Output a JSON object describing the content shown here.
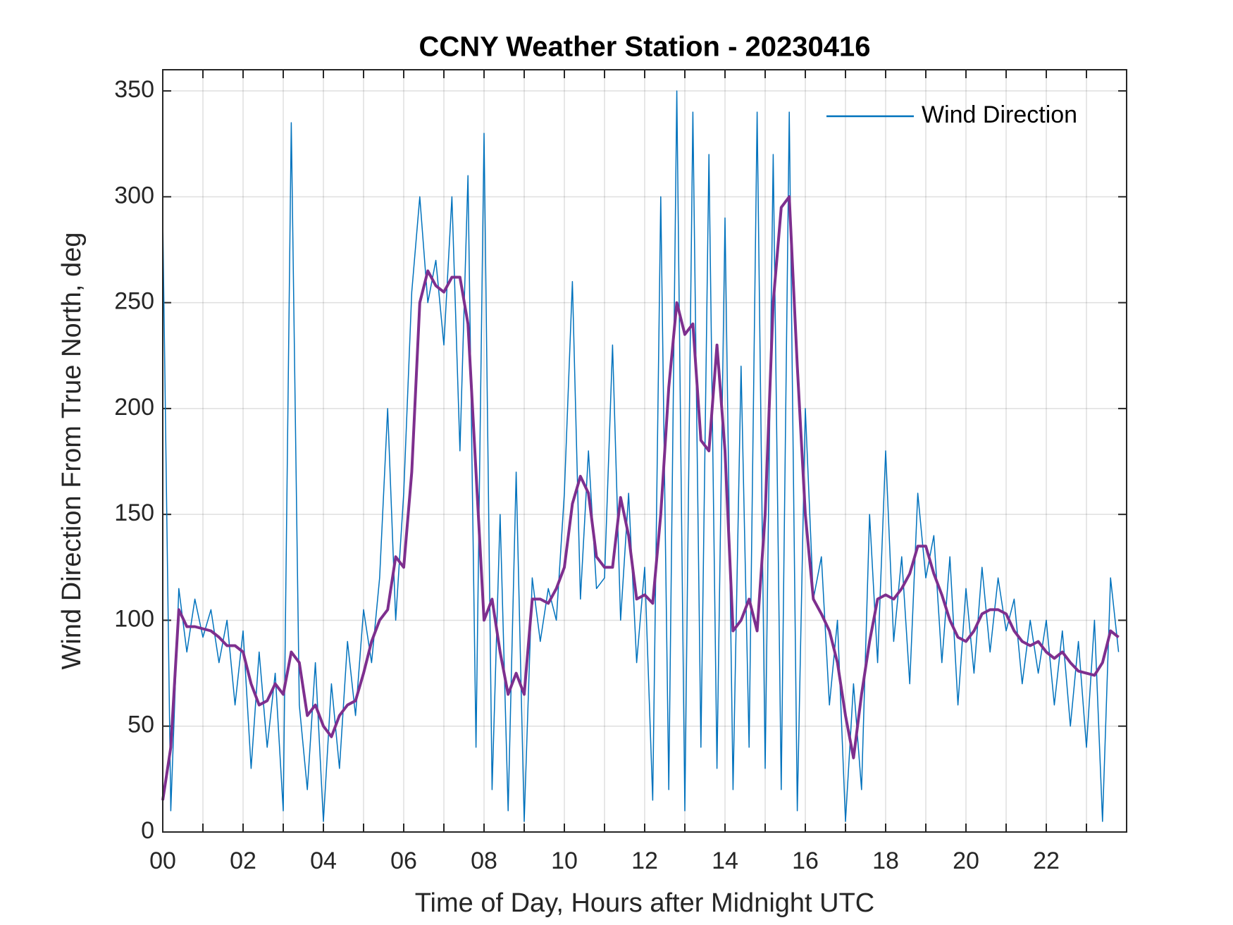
{
  "chart_data": {
    "type": "line",
    "title": "CCNY Weather Station - 20230416",
    "xlabel": "Time of Day, Hours after Midnight UTC",
    "ylabel": "Wind Direction From True North, deg",
    "x": [
      0,
      0.2,
      0.4,
      0.6,
      0.8,
      1,
      1.2,
      1.4,
      1.6,
      1.8,
      2,
      2.2,
      2.4,
      2.6,
      2.8,
      3,
      3.2,
      3.4,
      3.6,
      3.8,
      4,
      4.2,
      4.4,
      4.6,
      4.8,
      5,
      5.2,
      5.4,
      5.6,
      5.8,
      6,
      6.2,
      6.4,
      6.6,
      6.8,
      7,
      7.2,
      7.4,
      7.6,
      7.8,
      8,
      8.2,
      8.4,
      8.6,
      8.8,
      9,
      9.2,
      9.4,
      9.6,
      9.8,
      10,
      10.2,
      10.4,
      10.6,
      10.8,
      11,
      11.2,
      11.4,
      11.6,
      11.8,
      12,
      12.2,
      12.4,
      12.6,
      12.8,
      13,
      13.2,
      13.4,
      13.6,
      13.8,
      14,
      14.2,
      14.4,
      14.6,
      14.8,
      15,
      15.2,
      15.4,
      15.6,
      15.8,
      16,
      16.2,
      16.4,
      16.6,
      16.8,
      17,
      17.2,
      17.4,
      17.6,
      17.8,
      18,
      18.2,
      18.4,
      18.6,
      18.8,
      19,
      19.2,
      19.4,
      19.6,
      19.8,
      20,
      20.2,
      20.4,
      20.6,
      20.8,
      21,
      21.2,
      21.4,
      21.6,
      21.8,
      22,
      22.2,
      22.4,
      22.6,
      22.8,
      23,
      23.2,
      23.4,
      23.6,
      23.8
    ],
    "series": [
      {
        "name": "Wind Direction",
        "color": "#0072bd",
        "width": 1.5,
        "values": [
          290,
          10,
          115,
          85,
          110,
          92,
          105,
          80,
          100,
          60,
          95,
          30,
          85,
          40,
          75,
          10,
          335,
          60,
          20,
          80,
          5,
          70,
          30,
          90,
          55,
          105,
          80,
          120,
          200,
          100,
          160,
          255,
          300,
          250,
          270,
          230,
          300,
          180,
          310,
          40,
          330,
          20,
          150,
          10,
          170,
          5,
          120,
          90,
          115,
          100,
          160,
          260,
          110,
          180,
          115,
          120,
          230,
          100,
          160,
          80,
          125,
          15,
          300,
          20,
          350,
          10,
          340,
          40,
          320,
          30,
          290,
          20,
          220,
          40,
          340,
          30,
          320,
          20,
          340,
          10,
          200,
          110,
          130,
          60,
          100,
          5,
          70,
          20,
          150,
          80,
          180,
          90,
          130,
          70,
          160,
          120,
          140,
          80,
          130,
          60,
          115,
          75,
          125,
          85,
          120,
          95,
          110,
          70,
          100,
          75,
          100,
          60,
          95,
          50,
          90,
          40,
          100,
          5,
          120,
          85
        ]
      },
      {
        "color": "#7e2f8e",
        "width": 4,
        "values": [
          15,
          40,
          105,
          97,
          97,
          96,
          95,
          92,
          88,
          88,
          85,
          70,
          60,
          62,
          70,
          65,
          85,
          80,
          55,
          60,
          50,
          45,
          55,
          60,
          62,
          75,
          90,
          100,
          105,
          130,
          125,
          170,
          250,
          265,
          258,
          255,
          262,
          262,
          240,
          170,
          100,
          110,
          85,
          65,
          75,
          65,
          110,
          110,
          108,
          115,
          125,
          155,
          168,
          160,
          130,
          125,
          125,
          158,
          140,
          110,
          112,
          108,
          150,
          210,
          250,
          235,
          240,
          185,
          180,
          230,
          180,
          95,
          100,
          110,
          95,
          150,
          250,
          295,
          300,
          220,
          150,
          110,
          103,
          95,
          80,
          55,
          35,
          65,
          90,
          110,
          112,
          110,
          115,
          122,
          135,
          135,
          122,
          112,
          100,
          92,
          90,
          95,
          103,
          105,
          105,
          103,
          95,
          90,
          88,
          90,
          85,
          82,
          85,
          80,
          76,
          75,
          74,
          80,
          95,
          92
        ]
      }
    ],
    "xlim": [
      0,
      24
    ],
    "ylim": [
      0,
      360
    ],
    "xticks": [
      {
        "value": 0,
        "label": "00"
      },
      {
        "value": 2,
        "label": "02"
      },
      {
        "value": 4,
        "label": "04"
      },
      {
        "value": 6,
        "label": "06"
      },
      {
        "value": 8,
        "label": "08"
      },
      {
        "value": 10,
        "label": "10"
      },
      {
        "value": 12,
        "label": "12"
      },
      {
        "value": 14,
        "label": "14"
      },
      {
        "value": 16,
        "label": "16"
      },
      {
        "value": 18,
        "label": "18"
      },
      {
        "value": 20,
        "label": "20"
      },
      {
        "value": 22,
        "label": "22"
      }
    ],
    "minor_xticks": [
      1,
      3,
      5,
      7,
      9,
      11,
      13,
      15,
      17,
      19,
      21,
      23
    ],
    "yticks": [
      0,
      50,
      100,
      150,
      200,
      250,
      300,
      350
    ],
    "grid": true,
    "legend": "upper right"
  }
}
